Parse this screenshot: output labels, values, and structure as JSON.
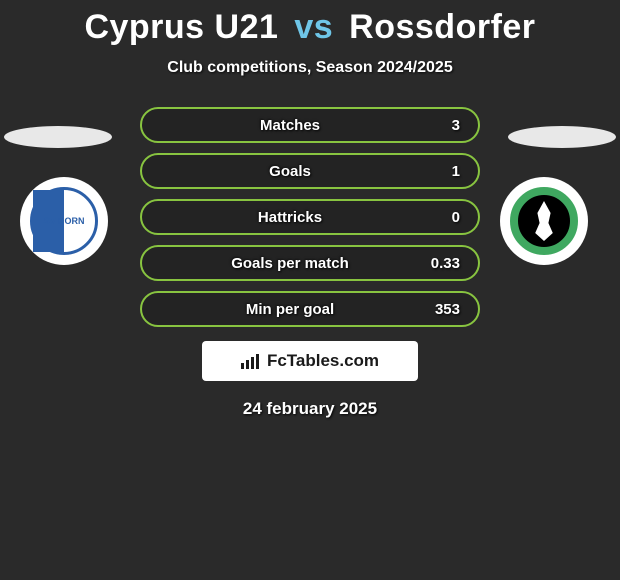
{
  "header": {
    "team1": "Cyprus U21",
    "vs": "vs",
    "team2": "Rossdorfer",
    "subtitle": "Club competitions, Season 2024/2025"
  },
  "logos": {
    "left": {
      "label": "SV HORN",
      "border_color": "#2b5fa8",
      "bg": "#ffffff"
    },
    "right": {
      "ring_color": "#3fa860",
      "bg": "#000000"
    }
  },
  "stats": {
    "border_color": "#88c440",
    "rows": [
      {
        "label": "Matches",
        "value": "3"
      },
      {
        "label": "Goals",
        "value": "1"
      },
      {
        "label": "Hattricks",
        "value": "0"
      },
      {
        "label": "Goals per match",
        "value": "0.33"
      },
      {
        "label": "Min per goal",
        "value": "353"
      }
    ]
  },
  "brand": {
    "text": "FcTables.com"
  },
  "date": "24 february 2025",
  "colors": {
    "background": "#2a2a2a",
    "accent": "#6fc6e8",
    "white": "#ffffff"
  }
}
